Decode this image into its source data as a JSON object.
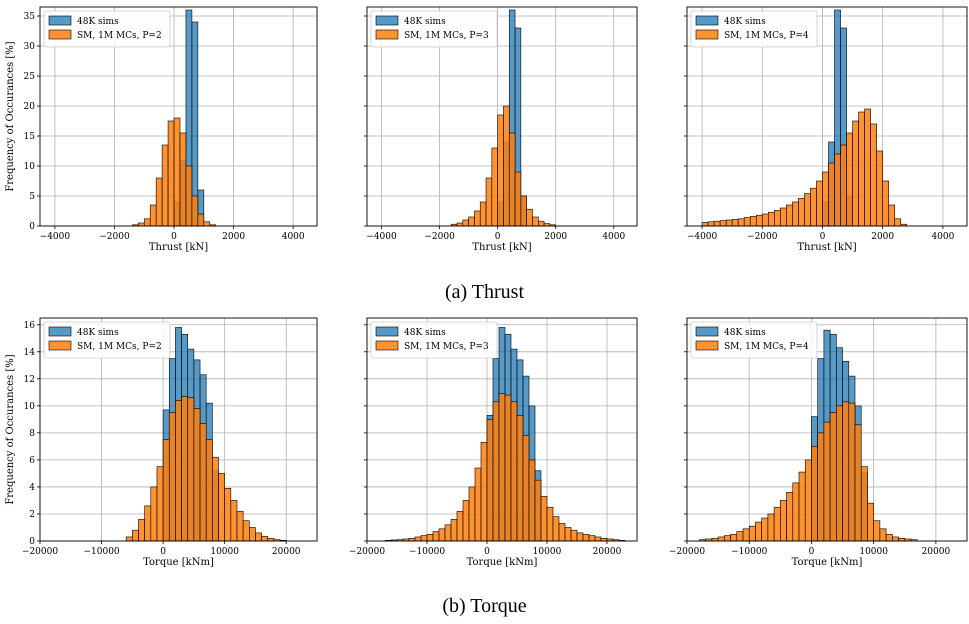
{
  "figure": {
    "caption_a": "(a) Thrust",
    "caption_b": "(b) Torque",
    "ylabel": "Frequency of Occurances [%]"
  },
  "colors": {
    "sims": "#1f77b4",
    "sm": "#ff7f0e",
    "grid": "#b0b0b0"
  },
  "chart_data": [
    {
      "type": "bar",
      "title": "",
      "xlabel": "Thrust [kN]",
      "ylabel": "Frequency of Occurances [%]",
      "xlim": [
        -4500,
        4800
      ],
      "ylim": [
        0,
        36.5
      ],
      "xticks": [
        -4000,
        -2000,
        0,
        2000,
        4000
      ],
      "xtick_labels": [
        "−4000",
        "−2000",
        "0",
        "2000",
        "4000"
      ],
      "yticks": [
        0,
        5,
        10,
        15,
        20,
        25,
        30,
        35
      ],
      "ytick_labels": [
        "0",
        "5",
        "10",
        "15",
        "20",
        "25",
        "30",
        "35"
      ],
      "grid": true,
      "legend_position": "top-left",
      "series": [
        {
          "name": "48K sims",
          "bin_start": 0,
          "bin_width": 200,
          "values": [
            4,
            11,
            36,
            34,
            6
          ]
        },
        {
          "name": "SM, 1M MCs, P=2",
          "bin_start": -1400,
          "bin_width": 200,
          "values": [
            0.2,
            0.5,
            1.2,
            3.5,
            8,
            13.5,
            17.5,
            18,
            15.5,
            10,
            5,
            2,
            0.7,
            0.2
          ]
        }
      ]
    },
    {
      "type": "bar",
      "title": "",
      "xlabel": "Thrust [kN]",
      "ylabel": "",
      "xlim": [
        -4500,
        4800
      ],
      "ylim": [
        0,
        36.5
      ],
      "xticks": [
        -4000,
        -2000,
        0,
        2000,
        4000
      ],
      "xtick_labels": [
        "−4000",
        "−2000",
        "0",
        "2000",
        "4000"
      ],
      "yticks": [
        0,
        5,
        10,
        15,
        20,
        25,
        30,
        35
      ],
      "ytick_labels": [],
      "grid": true,
      "legend_position": "top-left",
      "series": [
        {
          "name": "48K sims",
          "bin_start": 0,
          "bin_width": 200,
          "values": [
            4,
            14,
            36,
            33,
            5
          ]
        },
        {
          "name": "SM, 1M MCs, P=3",
          "bin_start": -1600,
          "bin_width": 200,
          "values": [
            0.3,
            0.5,
            1,
            1.5,
            2.5,
            4,
            8,
            13,
            18.5,
            20,
            15.5,
            9,
            5,
            2.8,
            1.5,
            0.8,
            0.4,
            0.2
          ]
        }
      ]
    },
    {
      "type": "bar",
      "title": "",
      "xlabel": "Thrust [kN]",
      "ylabel": "",
      "xlim": [
        -4500,
        4800
      ],
      "ylim": [
        0,
        36.5
      ],
      "xticks": [
        -4000,
        -2000,
        0,
        2000,
        4000
      ],
      "xtick_labels": [
        "−4000",
        "−2000",
        "0",
        "2000",
        "4000"
      ],
      "yticks": [
        0,
        5,
        10,
        15,
        20,
        25,
        30,
        35
      ],
      "ytick_labels": [],
      "grid": true,
      "legend_position": "top-left",
      "series": [
        {
          "name": "48K sims",
          "bin_start": 0,
          "bin_width": 200,
          "values": [
            4,
            14,
            36,
            33,
            5
          ]
        },
        {
          "name": "SM, 1M MCs, P=4",
          "bin_start": -4000,
          "bin_width": 200,
          "values": [
            0.6,
            0.7,
            0.8,
            0.9,
            1,
            1.1,
            1.2,
            1.4,
            1.6,
            1.8,
            2,
            2.3,
            2.6,
            3,
            3.5,
            4,
            4.6,
            5.4,
            6.3,
            7.5,
            9,
            10.5,
            12,
            13.5,
            15.5,
            17.5,
            19,
            19.5,
            17,
            12.5,
            7.5,
            3.5,
            1.2,
            0.3
          ]
        }
      ]
    },
    {
      "type": "bar",
      "title": "",
      "xlabel": "Torque [kNm]",
      "ylabel": "Frequency of Occurances [%]",
      "xlim": [
        -20000,
        25000
      ],
      "ylim": [
        0,
        16.5
      ],
      "xticks": [
        -20000,
        -10000,
        0,
        10000,
        20000
      ],
      "xtick_labels": [
        "−20000",
        "−10000",
        "0",
        "10000",
        "20000"
      ],
      "yticks": [
        0,
        2,
        4,
        6,
        8,
        10,
        12,
        14,
        16
      ],
      "ytick_labels": [
        "0",
        "2",
        "4",
        "6",
        "8",
        "10",
        "12",
        "14",
        "16"
      ],
      "grid": true,
      "legend_position": "top-left",
      "series": [
        {
          "name": "48K sims",
          "bin_start": 0,
          "bin_width": 1000,
          "values": [
            9.7,
            13.5,
            15.8,
            15.3,
            14.2,
            13.4,
            12.3,
            10.2,
            5.2
          ]
        },
        {
          "name": "SM, 1M MCs, P=2",
          "bin_start": -6000,
          "bin_width": 1000,
          "values": [
            0.3,
            0.8,
            1.6,
            2.6,
            4,
            5.5,
            7.5,
            9.5,
            10.4,
            10.7,
            10.6,
            9.8,
            8.7,
            7.5,
            6.2,
            5,
            3.9,
            3,
            2.2,
            1.5,
            1,
            0.6,
            0.35,
            0.2,
            0.1,
            0.05
          ]
        }
      ]
    },
    {
      "type": "bar",
      "title": "",
      "xlabel": "Torque [kNm]",
      "ylabel": "",
      "xlim": [
        -20000,
        25000
      ],
      "ylim": [
        0,
        16.5
      ],
      "xticks": [
        -20000,
        -10000,
        0,
        10000,
        20000
      ],
      "xtick_labels": [
        "−20000",
        "−10000",
        "0",
        "10000",
        "20000"
      ],
      "yticks": [
        0,
        2,
        4,
        6,
        8,
        10,
        12,
        14,
        16
      ],
      "ytick_labels": [],
      "grid": true,
      "legend_position": "top-left",
      "series": [
        {
          "name": "48K sims",
          "bin_start": 0,
          "bin_width": 1000,
          "values": [
            9.3,
            13.5,
            15.8,
            15.3,
            14.2,
            13.4,
            12.2,
            10,
            5.2
          ]
        },
        {
          "name": "SM, 1M MCs, P=3",
          "bin_start": -17000,
          "bin_width": 1000,
          "values": [
            0.05,
            0.08,
            0.1,
            0.15,
            0.2,
            0.3,
            0.4,
            0.5,
            0.7,
            0.9,
            1.2,
            1.6,
            2.2,
            3,
            4,
            5.4,
            7.3,
            9,
            10.3,
            10.9,
            10.8,
            10.3,
            9.3,
            7.8,
            6,
            4.5,
            3.3,
            2.5,
            1.8,
            1.3,
            1,
            0.8,
            0.6,
            0.5,
            0.4,
            0.3,
            0.2,
            0.15,
            0.1,
            0.05
          ]
        }
      ]
    },
    {
      "type": "bar",
      "title": "",
      "xlabel": "Torque [kNm]",
      "ylabel": "",
      "xlim": [
        -20000,
        25000
      ],
      "ylim": [
        0,
        16.5
      ],
      "xticks": [
        -20000,
        -10000,
        0,
        10000,
        20000
      ],
      "xtick_labels": [
        "−20000",
        "−10000",
        "0",
        "10000",
        "20000"
      ],
      "yticks": [
        0,
        2,
        4,
        6,
        8,
        10,
        12,
        14,
        16
      ],
      "ytick_labels": [],
      "grid": true,
      "legend_position": "top-left",
      "series": [
        {
          "name": "48K sims",
          "bin_start": 0,
          "bin_width": 1000,
          "values": [
            9.2,
            13.5,
            15.6,
            15.3,
            14.3,
            13.3,
            12.2,
            10,
            5.1
          ]
        },
        {
          "name": "SM, 1M MCs, P=4",
          "bin_start": -18000,
          "bin_width": 1000,
          "values": [
            0.1,
            0.15,
            0.2,
            0.3,
            0.4,
            0.5,
            0.7,
            0.9,
            1.1,
            1.4,
            1.7,
            2,
            2.5,
            3,
            3.6,
            4.3,
            5.1,
            6,
            7,
            8,
            8.8,
            9.5,
            10,
            10.3,
            10.2,
            8.6,
            5.5,
            2.8,
            1.5,
            0.9,
            0.5,
            0.3,
            0.2,
            0.15,
            0.1
          ]
        }
      ]
    }
  ]
}
